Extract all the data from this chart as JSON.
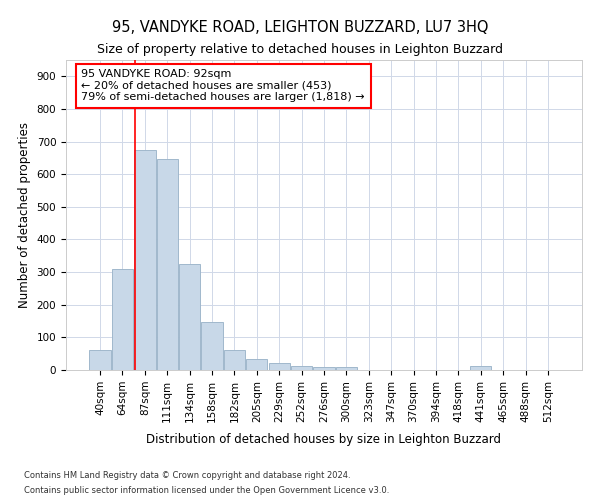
{
  "title": "95, VANDYKE ROAD, LEIGHTON BUZZARD, LU7 3HQ",
  "subtitle": "Size of property relative to detached houses in Leighton Buzzard",
  "xlabel": "Distribution of detached houses by size in Leighton Buzzard",
  "ylabel": "Number of detached properties",
  "footnote1": "Contains HM Land Registry data © Crown copyright and database right 2024.",
  "footnote2": "Contains public sector information licensed under the Open Government Licence v3.0.",
  "bar_labels": [
    "40sqm",
    "64sqm",
    "87sqm",
    "111sqm",
    "134sqm",
    "158sqm",
    "182sqm",
    "205sqm",
    "229sqm",
    "252sqm",
    "276sqm",
    "300sqm",
    "323sqm",
    "347sqm",
    "370sqm",
    "394sqm",
    "418sqm",
    "441sqm",
    "465sqm",
    "488sqm",
    "512sqm"
  ],
  "bar_values": [
    62,
    310,
    675,
    648,
    325,
    148,
    62,
    35,
    20,
    12,
    10,
    9,
    0,
    0,
    0,
    0,
    0,
    12,
    0,
    0,
    0
  ],
  "bar_color": "#c8d8e8",
  "bar_edgecolor": "#a0b8cc",
  "property_line_x": 1.58,
  "annotation_text": "95 VANDYKE ROAD: 92sqm\n← 20% of detached houses are smaller (453)\n79% of semi-detached houses are larger (1,818) →",
  "annotation_box_color": "white",
  "annotation_box_edgecolor": "red",
  "vline_color": "red",
  "ylim": [
    0,
    950
  ],
  "yticks": [
    0,
    100,
    200,
    300,
    400,
    500,
    600,
    700,
    800,
    900
  ],
  "grid_color": "#d0d8e8",
  "title_fontsize": 10.5,
  "tick_fontsize": 7.5,
  "ylabel_fontsize": 8.5,
  "xlabel_fontsize": 8.5,
  "annot_fontsize": 8.0
}
